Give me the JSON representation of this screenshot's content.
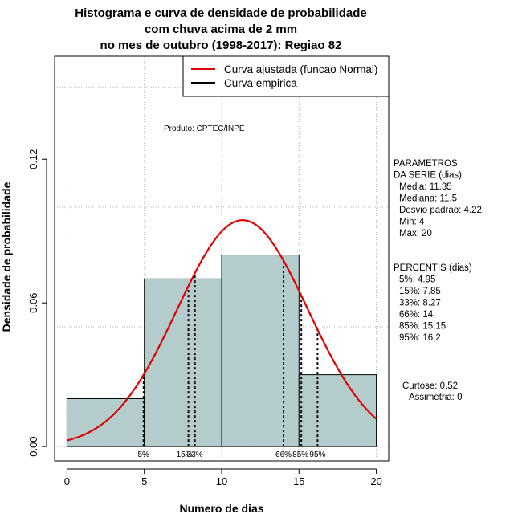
{
  "chart_data": {
    "type": "bar",
    "title": [
      "Histograma e curva de densidade de probabilidade",
      "com chuva acima de 2 mm",
      "no mes de outubro (1998-2017): Regiao 82"
    ],
    "xlabel": "Numero de dias",
    "ylabel": "Densidade de probabilidade",
    "xlim": [
      -0.8,
      20.8
    ],
    "ylim": [
      -0.006,
      0.163
    ],
    "x_ticks": [
      "0",
      "5",
      "10",
      "15",
      "20"
    ],
    "y_ticks": [
      "0.00",
      "0.06",
      "0.12"
    ],
    "grid": true,
    "histogram": {
      "bins": [
        [
          0,
          5
        ],
        [
          5,
          10
        ],
        [
          10,
          15
        ],
        [
          15,
          20
        ]
      ],
      "values": [
        0.02,
        0.07,
        0.08,
        0.03
      ],
      "fill": "#b5cccc"
    },
    "series": [
      {
        "name": "Curva ajustada (funcao Normal)",
        "type": "line",
        "color": "#e00000",
        "distribution": "normal",
        "mean": 11.35,
        "sd": 4.22,
        "x_range": [
          0,
          20
        ]
      },
      {
        "name": "Curva empirica",
        "type": "line",
        "color": "#000000"
      }
    ],
    "percentile_lines": [
      {
        "label": "5%",
        "x": 4.95
      },
      {
        "label": "15%",
        "x": 7.85
      },
      {
        "label": "33%",
        "x": 8.27
      },
      {
        "label": "66%",
        "x": 14
      },
      {
        "label": "85%",
        "x": 15.15
      },
      {
        "label": "95%",
        "x": 16.2
      }
    ],
    "legend_position": "top-right",
    "annotations": {
      "product": "Produto: CPTEC/INPE",
      "params_header": [
        "PARAMETROS",
        "DA SERIE (dias)"
      ],
      "params": [
        "Media: 11.35",
        "Mediana: 11.5",
        "Desvio padrao: 4.22",
        "Min: 4",
        "Max: 20"
      ],
      "perc_header": "PERCENTIS (dias)",
      "percentis": [
        "5%: 4.95",
        "15%: 7.85",
        "33%: 8.27",
        "66%: 14",
        "85%: 15.15",
        "95%: 16.2"
      ],
      "shape": [
        "Curtose: 0.52",
        "Assimetria: 0"
      ]
    }
  }
}
